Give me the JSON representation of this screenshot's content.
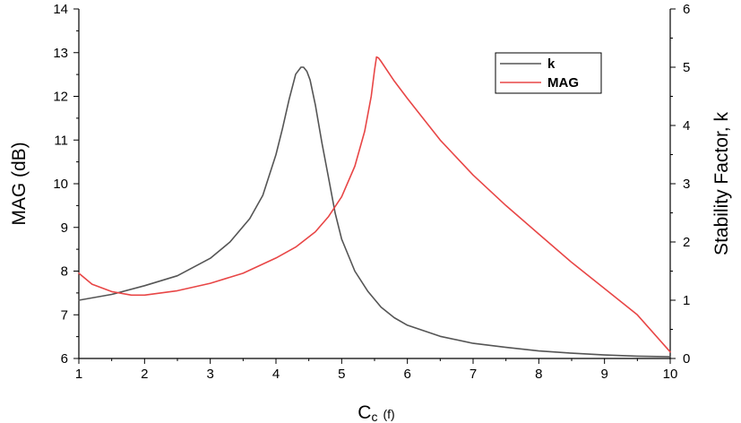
{
  "chart_data": {
    "type": "line",
    "title": "",
    "xlabel_main": "C",
    "xlabel_sub": "c",
    "xlabel_unit": "(f)",
    "ylabel_left": "MAG (dB)",
    "ylabel_right": "Stability Factor, k",
    "xlim": [
      1,
      10
    ],
    "ylim_left": [
      6,
      14
    ],
    "ylim_right": [
      0,
      6
    ],
    "x_ticks": [
      "1",
      "2",
      "3",
      "4",
      "5",
      "6",
      "7",
      "8",
      "9",
      "10"
    ],
    "y_left_ticks": [
      "6",
      "7",
      "8",
      "9",
      "10",
      "11",
      "12",
      "13",
      "14"
    ],
    "y_right_ticks": [
      "0",
      "1",
      "2",
      "3",
      "4",
      "5",
      "6"
    ],
    "legend_position": "top-right",
    "grid": false,
    "series": [
      {
        "name": "k",
        "axis": "right",
        "color": "#555555",
        "x": [
          1.0,
          1.5,
          2.0,
          2.5,
          3.0,
          3.3,
          3.6,
          3.8,
          4.0,
          4.1,
          4.2,
          4.3,
          4.38,
          4.42,
          4.47,
          4.52,
          4.6,
          4.7,
          4.8,
          4.9,
          5.0,
          5.2,
          5.4,
          5.6,
          5.8,
          6.0,
          6.5,
          7.0,
          7.5,
          8.0,
          8.5,
          9.0,
          9.5,
          10.0
        ],
        "y": [
          1.0,
          1.1,
          1.25,
          1.42,
          1.72,
          2.0,
          2.4,
          2.8,
          3.5,
          3.95,
          4.45,
          4.88,
          5.0,
          5.0,
          4.93,
          4.78,
          4.35,
          3.7,
          3.1,
          2.5,
          2.05,
          1.5,
          1.15,
          0.88,
          0.7,
          0.57,
          0.38,
          0.26,
          0.19,
          0.13,
          0.09,
          0.06,
          0.04,
          0.03
        ]
      },
      {
        "name": "MAG",
        "axis": "left",
        "color": "#e84646",
        "x": [
          1.0,
          1.2,
          1.5,
          1.8,
          2.0,
          2.5,
          3.0,
          3.5,
          4.0,
          4.3,
          4.6,
          4.8,
          5.0,
          5.2,
          5.35,
          5.45,
          5.5,
          5.53,
          5.56,
          5.6,
          5.8,
          6.0,
          6.5,
          7.0,
          7.5,
          8.0,
          8.5,
          9.0,
          9.5,
          10.0
        ],
        "y": [
          7.95,
          7.7,
          7.53,
          7.45,
          7.45,
          7.55,
          7.72,
          7.95,
          8.3,
          8.55,
          8.9,
          9.25,
          9.7,
          10.4,
          11.2,
          12.0,
          12.6,
          12.9,
          12.88,
          12.8,
          12.35,
          11.95,
          11.0,
          10.2,
          9.5,
          8.85,
          8.2,
          7.6,
          7.0,
          6.15
        ]
      }
    ]
  }
}
